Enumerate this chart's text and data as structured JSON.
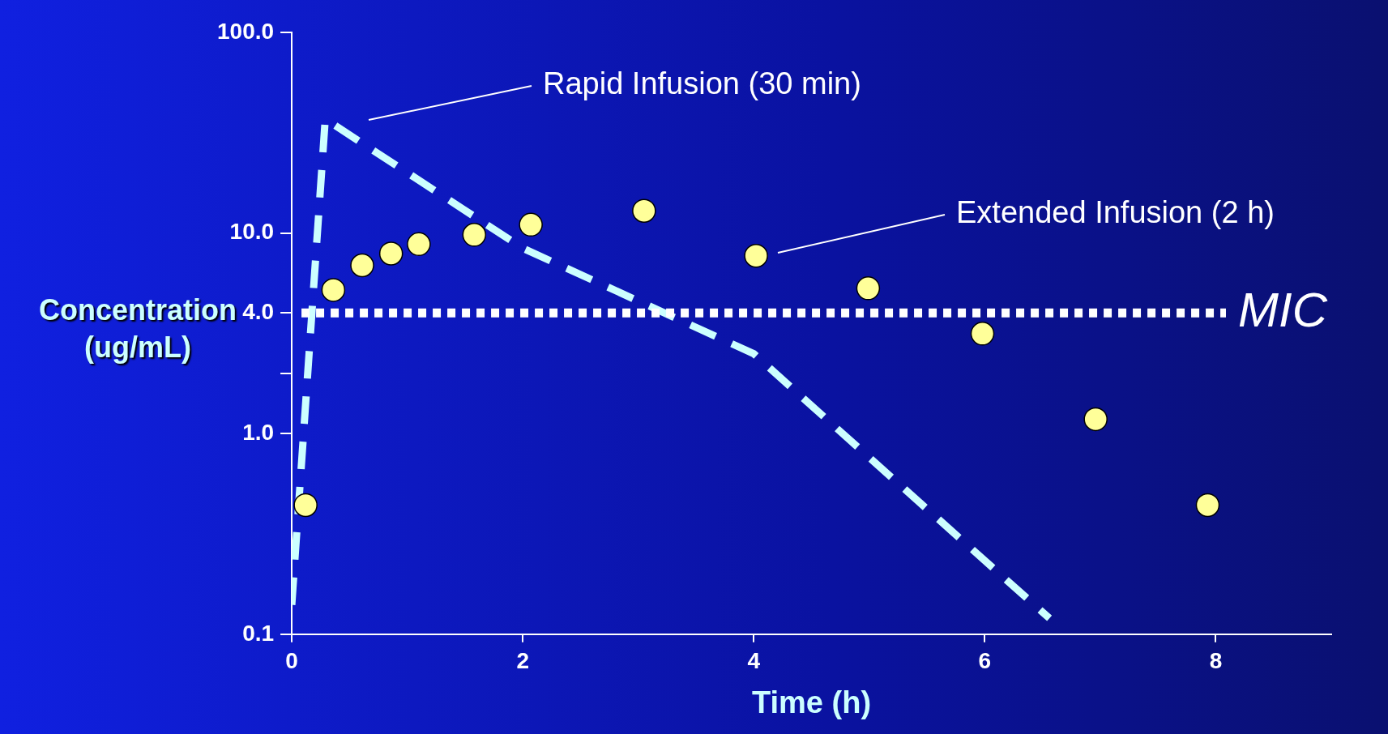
{
  "chart_data": {
    "type": "scatter",
    "xlabel": "Time (h)",
    "ylabel": "Concentration (ug/mL)",
    "log": true,
    "xlim": [
      0,
      9
    ],
    "ylim": [
      0.1,
      100
    ],
    "xticks": [
      0,
      2,
      4,
      6,
      8
    ],
    "yticks": [
      {
        "value": 0.1,
        "label": "0.1"
      },
      {
        "value": 1,
        "label": "1.0"
      },
      {
        "value": 2,
        "label": null
      },
      {
        "value": 4,
        "label": "4.0"
      },
      {
        "value": 10,
        "label": "10.0"
      },
      {
        "value": 100,
        "label": "100.0"
      }
    ],
    "grid": false,
    "legend": false,
    "line_style": "dashed",
    "series": [
      {
        "type": "line",
        "color": "#ccffff",
        "x": [
          0,
          0.29,
          2,
          4,
          5,
          6.56
        ],
        "values": [
          0.14,
          37,
          8.4,
          2.5,
          0.76,
          0.12
        ]
      },
      {
        "marker": "circle",
        "color": "#ffff99",
        "x": [
          0.12,
          0.36,
          0.61,
          0.86,
          1.1,
          1.58,
          2.07,
          3.05,
          4.02,
          4.99,
          5.98,
          6.96,
          7.93
        ],
        "values": [
          0.44,
          5.2,
          6.9,
          7.9,
          8.8,
          9.8,
          11,
          12.9,
          7.7,
          5.3,
          3.15,
          1.18,
          0.44
        ]
      }
    ],
    "ref_lines": [
      {
        "axis": "y",
        "value": 4,
        "label": "MIC",
        "color": "#ffffff",
        "line_style": "dotted"
      }
    ],
    "annotations": [
      "Rapid Infusion (30 min)",
      "Extended Infusion (2 h)"
    ]
  }
}
